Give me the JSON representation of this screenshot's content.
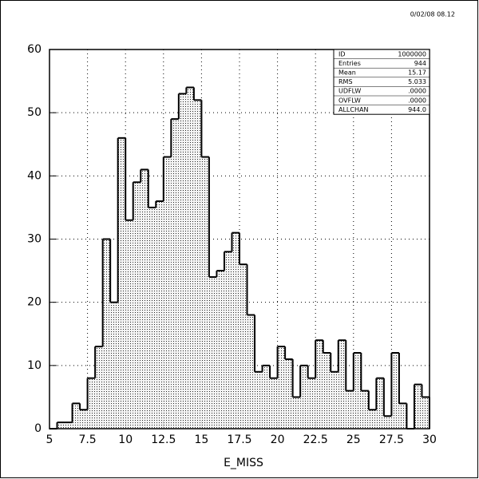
{
  "chart_data": {
    "type": "histogram",
    "date": "0/02/08  08.12",
    "x_label": "E_MISS",
    "bins": [
      5,
      5.5,
      6,
      6.5,
      7,
      7.5,
      8,
      8.5,
      9,
      9.5,
      10,
      10.5,
      11,
      11.5,
      12,
      12.5,
      13,
      13.5,
      14,
      14.5,
      15,
      15.5,
      16,
      16.5,
      17,
      17.5,
      18,
      18.5,
      19,
      19.5,
      20,
      20.5,
      21,
      21.5,
      22,
      22.5,
      23,
      23.5,
      24,
      24.5,
      25,
      25.5,
      26,
      26.5,
      27,
      27.5,
      28,
      28.5,
      29,
      29.5,
      30
    ],
    "counts": [
      0,
      1,
      1,
      4,
      3,
      8,
      13,
      30,
      20,
      46,
      33,
      39,
      41,
      35,
      36,
      43,
      49,
      53,
      54,
      52,
      43,
      24,
      25,
      28,
      31,
      26,
      18,
      9,
      10,
      8,
      13,
      11,
      5,
      10,
      8,
      14,
      12,
      9,
      14,
      6,
      12,
      6,
      3,
      8,
      2,
      12,
      4,
      0,
      7,
      5
    ],
    "xlim": [
      5,
      30
    ],
    "ylim": [
      0,
      60
    ],
    "xticks": [
      5,
      7.5,
      10,
      12.5,
      15,
      17.5,
      20,
      22.5,
      25,
      27.5,
      30
    ],
    "yticks": [
      0,
      10,
      20,
      30,
      40,
      50,
      60
    ],
    "grid": true,
    "stats": [
      [
        "ID",
        "1000000"
      ],
      [
        "Entries",
        "944"
      ],
      [
        "Mean",
        "15.17"
      ],
      [
        "RMS",
        "5.033"
      ],
      [
        "UDFLW",
        ".0000"
      ],
      [
        "OVFLW",
        ".0000"
      ],
      [
        "ALLCHAN",
        "944.0"
      ]
    ]
  }
}
